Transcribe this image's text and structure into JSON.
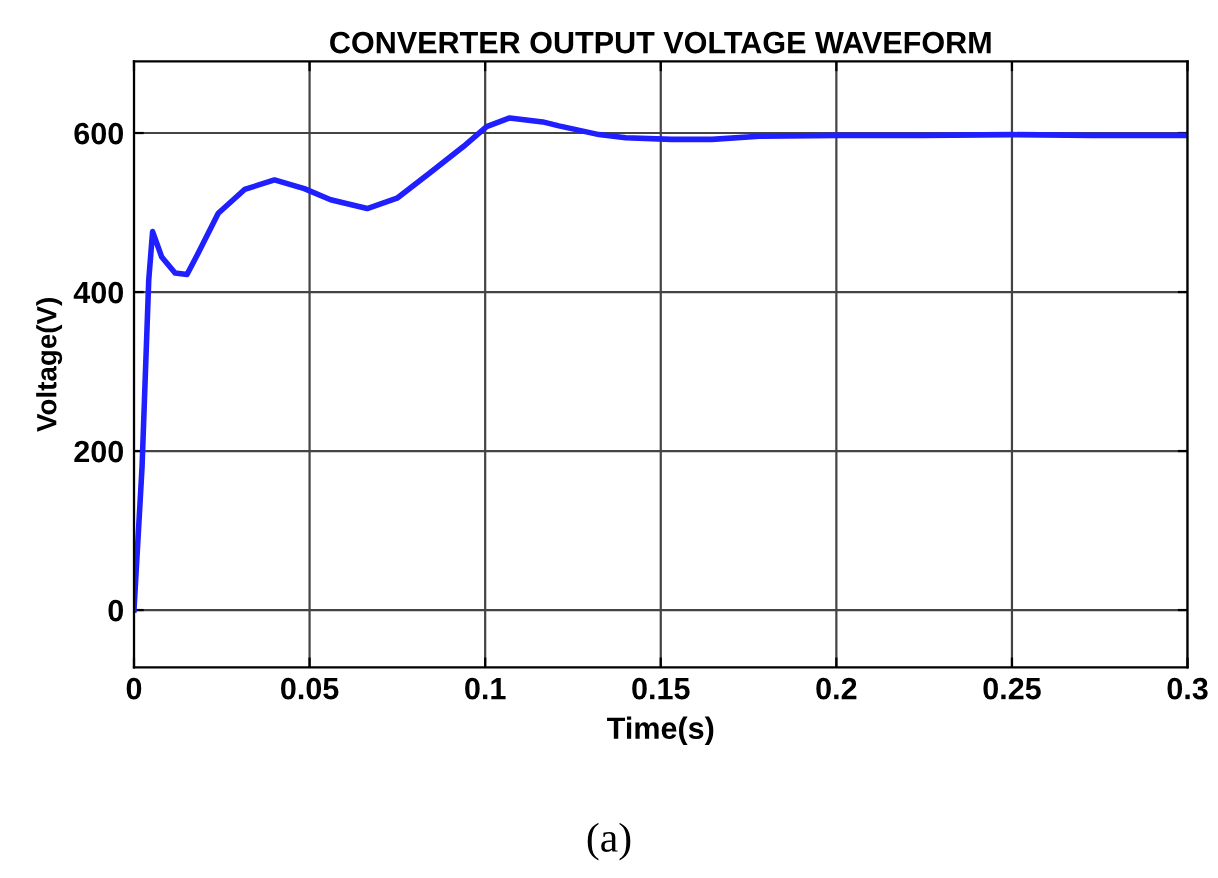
{
  "chart_data": {
    "type": "line",
    "title": "CONVERTER OUTPUT VOLTAGE WAVEFORM",
    "xlabel": "Time(s)",
    "ylabel": "Voltage(V)",
    "annotations": [
      "(a)"
    ],
    "series": [
      {
        "color": "#1f1fff",
        "x": [
          0,
          0.0023,
          0.0042,
          0.0053,
          0.0079,
          0.0117,
          0.0151,
          0.0183,
          0.024,
          0.0315,
          0.04,
          0.0485,
          0.056,
          0.0664,
          0.0749,
          0.0843,
          0.0938,
          0.1004,
          0.107,
          0.1164,
          0.121,
          0.1324,
          0.14,
          0.153,
          0.1646,
          0.178,
          0.2,
          0.2246,
          0.25,
          0.2727,
          0.3
        ],
        "values": [
          0,
          180,
          415,
          476,
          444,
          424,
          422,
          449,
          499,
          529,
          541,
          530,
          516,
          505,
          518,
          550,
          583,
          608,
          619,
          614,
          609,
          598,
          594,
          592,
          592,
          596,
          597,
          597,
          598,
          597,
          597
        ]
      }
    ],
    "xlim": [
      0,
      0.3
    ],
    "xticks": [
      0,
      0.05,
      0.1,
      0.15,
      0.2,
      0.25,
      0.3
    ],
    "ylim": [
      -72,
      690
    ],
    "yticks": [
      0,
      200,
      400,
      600
    ],
    "grid": true,
    "legend": false,
    "marker": "none",
    "line_style": "solid"
  }
}
